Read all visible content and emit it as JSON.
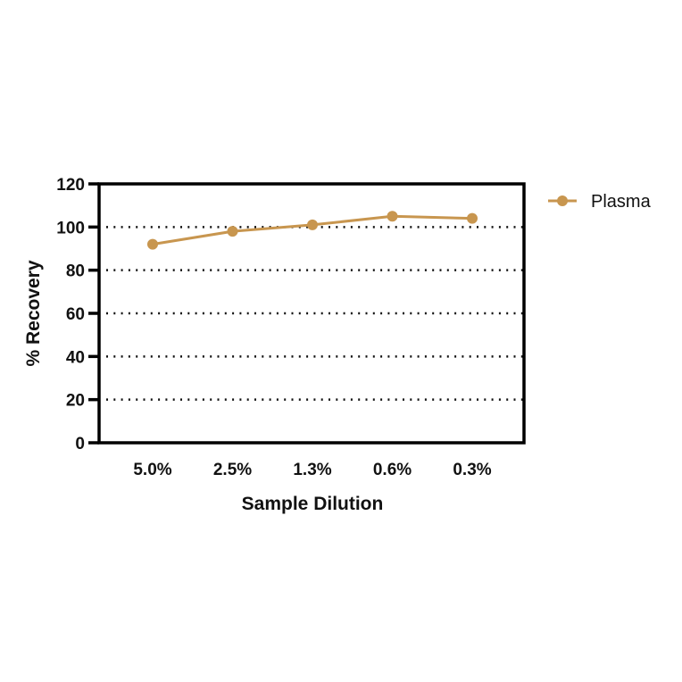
{
  "chart_data": {
    "type": "line",
    "title": "",
    "xlabel": "Sample Dilution",
    "ylabel": "% Recovery",
    "categories": [
      "5.0%",
      "2.5%",
      "1.3%",
      "0.6%",
      "0.3%"
    ],
    "series": [
      {
        "name": "Plasma",
        "color": "#C8964F",
        "values": [
          92,
          98,
          101,
          105,
          104
        ]
      }
    ],
    "ylim": [
      0,
      120
    ],
    "yticks": [
      0,
      20,
      40,
      60,
      80,
      100,
      120
    ],
    "grid": "horizontal dotted",
    "legend_position": "right"
  },
  "colors": {
    "series": "#C8964F",
    "axis": "#000000"
  }
}
